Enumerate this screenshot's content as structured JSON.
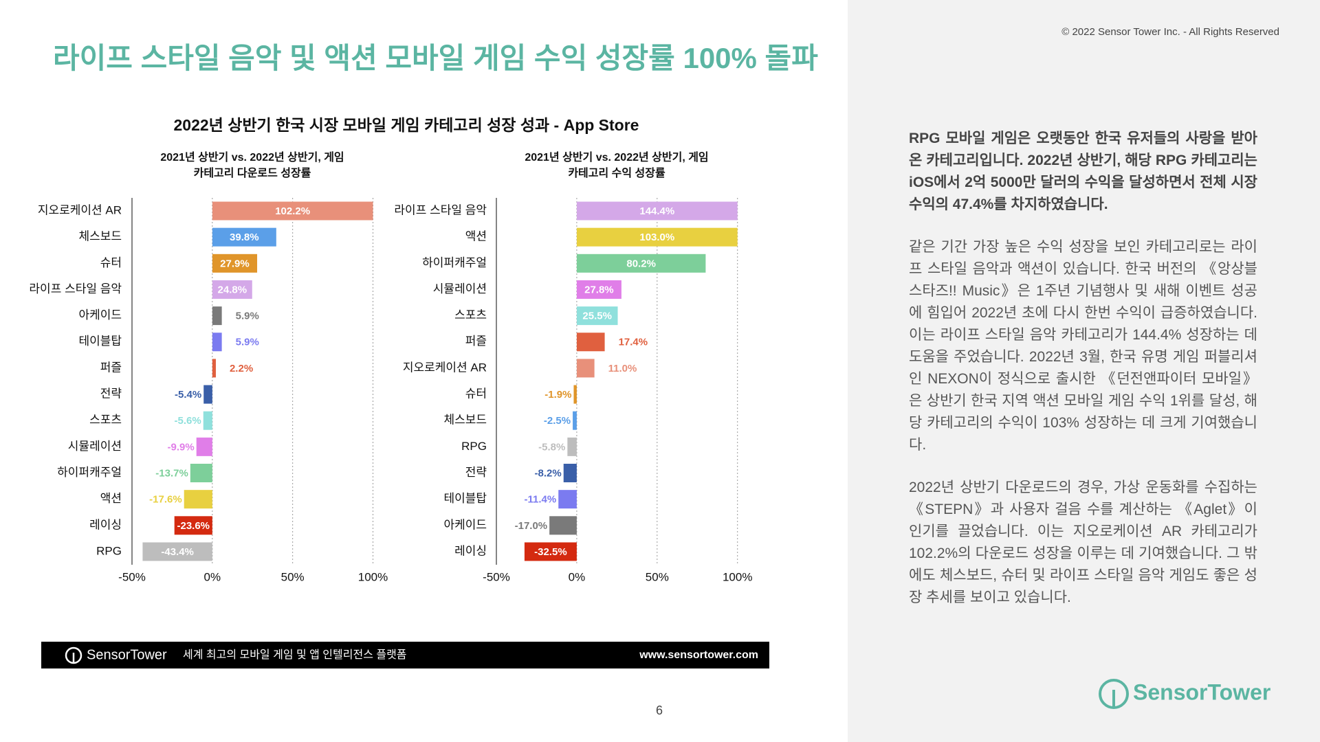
{
  "title": "라이프 스타일 음악 및 액션 모바일 게임 수익 성장률 100% 돌파",
  "copyright": "© 2022 Sensor Tower Inc. - All Rights Reserved",
  "chart_title": "2022년 상반기 한국 시장 모바일 게임 카테고리 성장 성과 - App Store",
  "chart_data": [
    {
      "type": "hbar",
      "subtitle": [
        "2021년 상반기 vs. 2022년 상반기, 게임",
        "카테고리 다운로드 성장률"
      ],
      "categories": [
        "지오로케이션 AR",
        "체스보드",
        "슈터",
        "라이프 스타일 음악",
        "아케이드",
        "테이블탑",
        "퍼즐",
        "전략",
        "스포츠",
        "시뮬레이션",
        "하이퍼캐주얼",
        "액션",
        "레이싱",
        "RPG"
      ],
      "values": [
        102.2,
        39.8,
        27.9,
        24.8,
        5.9,
        5.9,
        2.2,
        -5.4,
        -5.6,
        -9.9,
        -13.7,
        -17.6,
        -23.6,
        -43.4
      ],
      "value_labels": [
        "102.2%",
        "39.8%",
        "27.9%",
        "24.8%",
        "5.9%",
        "5.9%",
        "2.2%",
        "-5.4%",
        "-5.6%",
        "-9.9%",
        "-13.7%",
        "-17.6%",
        "-23.6%",
        "-43.4%"
      ],
      "colors": [
        "#e8907a",
        "#5b9fe8",
        "#e0952a",
        "#d4a8e8",
        "#7a7a7a",
        "#7b7bf0",
        "#e0603f",
        "#3a5fa8",
        "#8fe0dc",
        "#e07ee8",
        "#7dcf9a",
        "#e8d040",
        "#d42a10",
        "#bdbdbd"
      ],
      "xlim": [
        -50,
        100
      ],
      "xticks": [
        {
          "value": -50,
          "label": "-50%"
        },
        {
          "value": 0,
          "label": "0%"
        },
        {
          "value": 50,
          "label": "50%"
        },
        {
          "value": 100,
          "label": "100%"
        }
      ]
    },
    {
      "type": "hbar",
      "subtitle": [
        "2021년 상반기 vs. 2022년 상반기, 게임",
        "카테고리 수익 성장률"
      ],
      "categories": [
        "라이프 스타일 음악",
        "액션",
        "하이퍼캐주얼",
        "시뮬레이션",
        "스포츠",
        "퍼즐",
        "지오로케이션 AR",
        "슈터",
        "체스보드",
        "RPG",
        "전략",
        "테이블탑",
        "아케이드",
        "레이싱"
      ],
      "values": [
        144.4,
        103.0,
        80.2,
        27.8,
        25.5,
        17.4,
        11.0,
        -1.9,
        -2.5,
        -5.8,
        -8.2,
        -11.4,
        -17.0,
        -32.5
      ],
      "value_labels": [
        "144.4%",
        "103.0%",
        "80.2%",
        "27.8%",
        "25.5%",
        "17.4%",
        "11.0%",
        "-1.9%",
        "-2.5%",
        "-5.8%",
        "-8.2%",
        "-11.4%",
        "-17.0%",
        "-32.5%"
      ],
      "colors": [
        "#d4a8e8",
        "#e8d040",
        "#7dcf9a",
        "#e07ee8",
        "#8fe0dc",
        "#e0603f",
        "#e8907a",
        "#e0952a",
        "#5b9fe8",
        "#bdbdbd",
        "#3a5fa8",
        "#7b7bf0",
        "#7a7a7a",
        "#d42a10"
      ],
      "xlim": [
        -50,
        100
      ],
      "xticks": [
        {
          "value": -50,
          "label": "-50%"
        },
        {
          "value": 0,
          "label": "0%"
        },
        {
          "value": 50,
          "label": "50%"
        },
        {
          "value": 100,
          "label": "100%"
        }
      ]
    }
  ],
  "paragraphs": [
    "RPG 모바일 게임은 오랫동안 한국 유저들의 사랑을 받아온 카테고리입니다. 2022년 상반기, 해당 RPG 카테고리는 iOS에서 2억 5000만 달러의 수익을 달성하면서 전체 시장 수익의 47.4%를 차지하였습니다.",
    "같은 기간 가장 높은 수익 성장을 보인 카테고리로는 라이프 스타일 음악과 액션이 있습니다. 한국 버전의 《앙상블 스타즈!! Music》은 1주년 기념행사 및 새해 이벤트 성공에 힘입어 2022년 초에 다시 한번 수익이 급증하였습니다. 이는 라이프 스타일 음악 카테고리가 144.4% 성장하는 데 도움을 주었습니다. 2022년 3월, 한국 유명 게임 퍼블리셔인 NEXON이 정식으로 출시한 《던전앤파이터 모바일》은 상반기 한국 지역 액션 모바일 게임 수익 1위를 달성, 해당 카테고리의 수익이 103% 성장하는 데 크게 기여했습니다.",
    "2022년 상반기 다운로드의 경우, 가상 운동화를 수집하는 《STEPN》과 사용자 걸음 수를 계산하는 《Aglet》이 인기를 끌었습니다. 이는 지오로케이션 AR 카테고리가 102.2%의 다운로드 성장을 이루는 데 기여했습니다. 그 밖에도 체스보드, 슈터 및 라이프 스타일 음악 게임도 좋은 성장 추세를 보이고 있습니다."
  ],
  "footer": {
    "brand": "SensorTower",
    "tagline": "세계 최고의 모바일 게임 및 앱 인텔리전스 플랫폼",
    "url": "www.sensortower.com"
  },
  "page_number": 6,
  "logo": "SensorTower"
}
